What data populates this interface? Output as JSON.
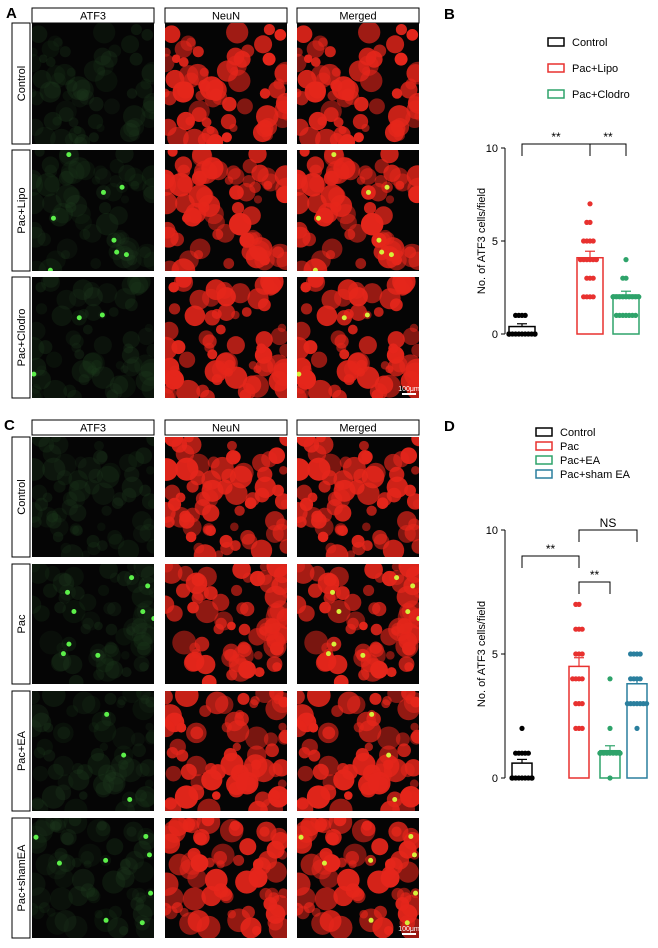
{
  "figure": {
    "panel_a": {
      "label": "A",
      "columns": [
        "ATF3",
        "NeuN",
        "Merged"
      ],
      "rows": [
        "Control",
        "Pac+Lipo",
        "Pac+Clodro"
      ],
      "scale_bar": "100μm"
    },
    "panel_c": {
      "label": "C",
      "columns": [
        "ATF3",
        "NeuN",
        "Merged"
      ],
      "rows": [
        "Control",
        "Pac",
        "Pac+EA",
        "Pac+shamEA"
      ],
      "scale_bar": "100μm"
    }
  },
  "chart_data": [
    {
      "type": "bar",
      "panel_label": "B",
      "ylabel": "No. of ATF3  cells/field",
      "categories": [
        "Control",
        "Pac+Lipo",
        "Pac+Clodro"
      ],
      "colors": [
        "#000000",
        "#e8312f",
        "#2ea36a"
      ],
      "values": [
        0.4,
        4.1,
        2.1
      ],
      "errors": [
        0.15,
        0.35,
        0.2
      ],
      "points": [
        [
          0,
          0,
          0,
          0,
          0,
          0,
          0,
          0,
          0,
          0,
          1,
          1,
          1,
          0,
          0,
          0,
          0,
          0,
          1,
          0
        ],
        [
          7,
          6,
          6,
          5,
          5,
          5,
          5,
          4,
          4,
          4,
          4,
          4,
          4,
          3,
          3,
          3,
          2,
          2,
          2,
          2
        ],
        [
          4,
          3,
          3,
          2,
          2,
          2,
          2,
          2,
          2,
          2,
          2,
          2,
          2,
          1,
          1,
          1,
          1,
          1,
          1,
          1
        ]
      ],
      "ylim": [
        0,
        10
      ],
      "yticks": [
        0,
        5,
        10
      ],
      "annotations": [
        "**",
        "**"
      ]
    },
    {
      "type": "bar",
      "panel_label": "D",
      "ylabel": "No. of ATF3  cells/field",
      "categories": [
        "Control",
        "Pac",
        "Pac+EA",
        "Pac+sham EA"
      ],
      "colors": [
        "#000000",
        "#e8312f",
        "#2ea36a",
        "#2a7f9e"
      ],
      "values": [
        0.6,
        4.5,
        1.1,
        3.8
      ],
      "errors": [
        0.15,
        0.35,
        0.2,
        0.25
      ],
      "points": [
        [
          2,
          1,
          1,
          1,
          1,
          0,
          0,
          0,
          0,
          0,
          0,
          0,
          0,
          0,
          0,
          1,
          0
        ],
        [
          7,
          7,
          6,
          6,
          6,
          5,
          5,
          5,
          4,
          4,
          4,
          4,
          3,
          3,
          3,
          2,
          2,
          2
        ],
        [
          4,
          2,
          1,
          1,
          1,
          1,
          1,
          1,
          1,
          1,
          0,
          1,
          1,
          1,
          1,
          1
        ],
        [
          5,
          5,
          5,
          5,
          4,
          4,
          4,
          4,
          3,
          3,
          3,
          3,
          3,
          3,
          2,
          3
        ]
      ],
      "ylim": [
        0,
        10
      ],
      "yticks": [
        0,
        5,
        10
      ],
      "annotations": [
        "**",
        "**",
        "NS"
      ]
    }
  ]
}
